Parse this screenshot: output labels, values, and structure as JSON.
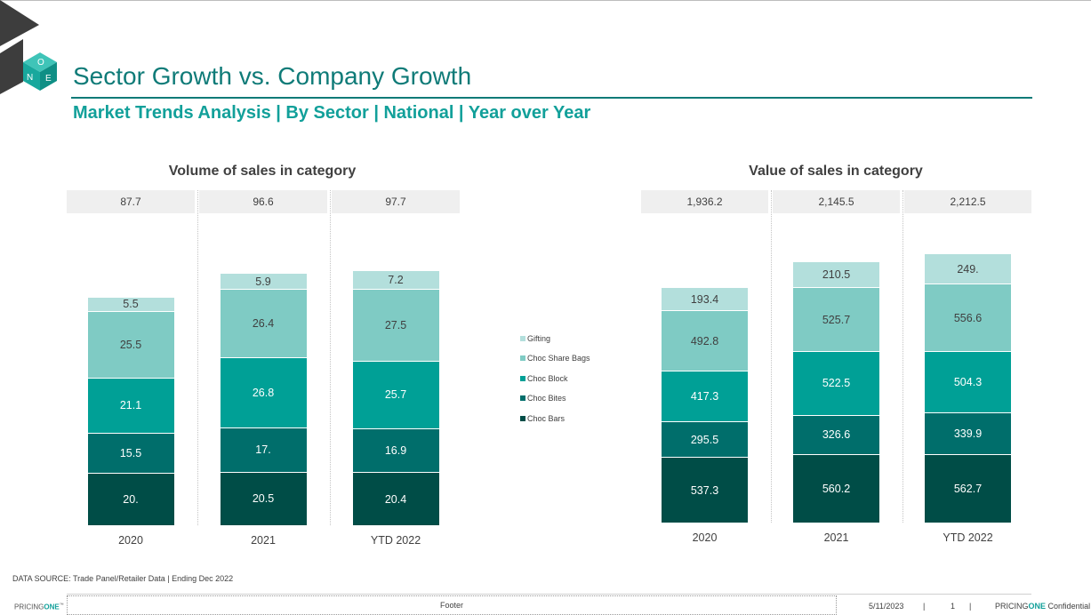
{
  "page": {
    "title": "Sector Growth vs. Company Growth",
    "subtitle": "Market Trends Analysis | By Sector | National | Year over Year"
  },
  "logo": {
    "letters": [
      "O",
      "N",
      "E"
    ]
  },
  "colors": {
    "gifting": "#b3dfdc",
    "choc_share_bags": "#7fcbc4",
    "choc_block": "#00a096",
    "choc_bites": "#006e6b",
    "choc_bars": "#004d47",
    "brand": "#0f7b78",
    "accent": "#12a09a"
  },
  "legend": [
    "Gifting",
    "Choc Share Bags",
    "Choc Block",
    "Choc Bites",
    "Choc Bars"
  ],
  "chart_data": [
    {
      "type": "bar",
      "stacked": true,
      "title": "Volume of sales in category",
      "categories": [
        "2020",
        "2021",
        "YTD 2022"
      ],
      "totals": [
        "87.7",
        "96.6",
        "97.7"
      ],
      "series": [
        {
          "name": "Choc Bars",
          "values": [
            20.0,
            20.5,
            20.4
          ],
          "labels": [
            "20.",
            "20.5",
            "20.4"
          ]
        },
        {
          "name": "Choc Bites",
          "values": [
            15.5,
            17.0,
            16.9
          ],
          "labels": [
            "15.5",
            "17.",
            "16.9"
          ]
        },
        {
          "name": "Choc Block",
          "values": [
            21.1,
            26.8,
            25.7
          ],
          "labels": [
            "21.1",
            "26.8",
            "25.7"
          ]
        },
        {
          "name": "Choc Share Bags",
          "values": [
            25.5,
            26.4,
            27.5
          ],
          "labels": [
            "25.5",
            "26.4",
            "27.5"
          ]
        },
        {
          "name": "Gifting",
          "values": [
            5.5,
            5.9,
            7.2
          ],
          "labels": [
            "5.5",
            "5.9",
            "7.2"
          ]
        }
      ]
    },
    {
      "type": "bar",
      "stacked": true,
      "title": "Value of sales in category",
      "categories": [
        "2020",
        "2021",
        "YTD 2022"
      ],
      "totals": [
        "1,936.2",
        "2,145.5",
        "2,212.5"
      ],
      "series": [
        {
          "name": "Choc Bars",
          "values": [
            537.3,
            560.2,
            562.7
          ],
          "labels": [
            "537.3",
            "560.2",
            "562.7"
          ]
        },
        {
          "name": "Choc Bites",
          "values": [
            295.5,
            326.6,
            339.9
          ],
          "labels": [
            "295.5",
            "326.6",
            "339.9"
          ]
        },
        {
          "name": "Choc Block",
          "values": [
            417.3,
            522.5,
            504.3
          ],
          "labels": [
            "417.3",
            "522.5",
            "504.3"
          ]
        },
        {
          "name": "Choc Share Bags",
          "values": [
            492.8,
            525.7,
            556.6
          ],
          "labels": [
            "492.8",
            "525.7",
            "556.6"
          ]
        },
        {
          "name": "Gifting",
          "values": [
            193.4,
            210.5,
            249.0
          ],
          "labels": [
            "193.4",
            "210.5",
            "249."
          ]
        }
      ]
    }
  ],
  "source": "DATA SOURCE: Trade Panel/Retailer Data | Ending Dec 2022",
  "footer": {
    "brand_plain": "PRICING",
    "brand_accent": "ONE",
    "trademark": "™",
    "center": "Footer",
    "date": "5/11/2023",
    "separator": "|",
    "page_number": "1",
    "confidential": "Confidential"
  }
}
